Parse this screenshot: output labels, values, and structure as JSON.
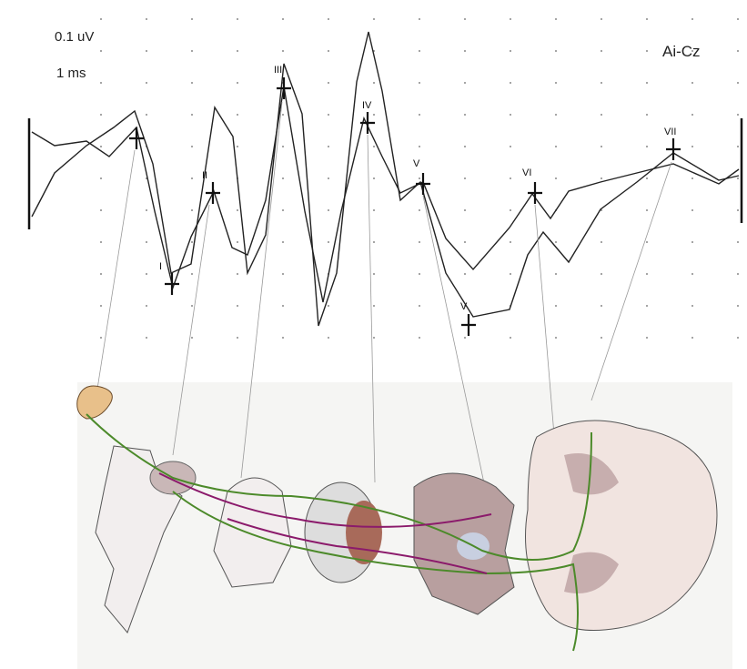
{
  "scale": {
    "amplitude": "0.1 uV",
    "time": "1 ms"
  },
  "channel": "Ai-Cz",
  "peaks": [
    {
      "label": "I"
    },
    {
      "label": "II"
    },
    {
      "label": "III"
    },
    {
      "label": "IV"
    },
    {
      "label": "V"
    },
    {
      "label": "V"
    },
    {
      "label": "VI"
    },
    {
      "label": "VII"
    }
  ]
}
